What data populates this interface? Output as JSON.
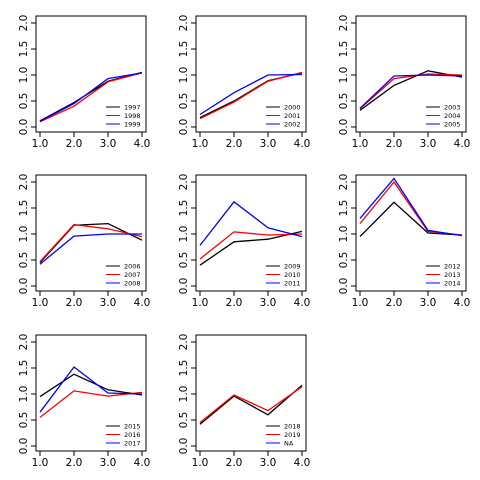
{
  "chart_data": [
    {
      "type": "line",
      "x": [
        1,
        2,
        3,
        4
      ],
      "x_ticks": [
        "1.0",
        "2.0",
        "3.0",
        "4.0"
      ],
      "y_ticks": [
        "0.0",
        "0.5",
        "1.0",
        "1.5",
        "2.0"
      ],
      "xlim": [
        1,
        4
      ],
      "ylim": [
        0,
        2
      ],
      "legend_position": "bottom-right",
      "series": [
        {
          "name": "1997",
          "color": "#000000",
          "values": [
            0.12,
            0.47,
            0.88,
            1.05
          ]
        },
        {
          "name": "1998",
          "color": "#ff0000",
          "values": [
            0.1,
            0.4,
            0.87,
            1.04
          ]
        },
        {
          "name": "1999",
          "color": "#0000ff",
          "values": [
            0.11,
            0.45,
            0.93,
            1.04
          ]
        }
      ]
    },
    {
      "type": "line",
      "x": [
        1,
        2,
        3,
        4
      ],
      "x_ticks": [
        "1.0",
        "2.0",
        "3.0",
        "4.0"
      ],
      "y_ticks": [
        "0.0",
        "0.5",
        "1.0",
        "1.5",
        "2.0"
      ],
      "xlim": [
        1,
        4
      ],
      "ylim": [
        0,
        2
      ],
      "legend_position": "bottom-right",
      "series": [
        {
          "name": "2000",
          "color": "#000000",
          "values": [
            0.18,
            0.5,
            0.89,
            1.04
          ]
        },
        {
          "name": "2001",
          "color": "#ff0000",
          "values": [
            0.16,
            0.48,
            0.88,
            1.05
          ]
        },
        {
          "name": "2002",
          "color": "#0000ff",
          "values": [
            0.24,
            0.66,
            1.0,
            1.01
          ]
        }
      ]
    },
    {
      "type": "line",
      "x": [
        1,
        2,
        3,
        4
      ],
      "x_ticks": [
        "1.0",
        "2.0",
        "3.0",
        "4.0"
      ],
      "y_ticks": [
        "0.0",
        "0.5",
        "1.0",
        "1.5",
        "2.0"
      ],
      "xlim": [
        1,
        4
      ],
      "ylim": [
        0,
        2
      ],
      "legend_position": "bottom-right",
      "series": [
        {
          "name": "2003",
          "color": "#000000",
          "values": [
            0.32,
            0.8,
            1.08,
            0.96
          ]
        },
        {
          "name": "2004",
          "color": "#ff0000",
          "values": [
            0.35,
            0.93,
            1.02,
            1.0
          ]
        },
        {
          "name": "2005",
          "color": "#0000ff",
          "values": [
            0.36,
            0.98,
            1.0,
            0.98
          ]
        }
      ]
    },
    {
      "type": "line",
      "x": [
        1,
        2,
        3,
        4
      ],
      "x_ticks": [
        "1.0",
        "2.0",
        "3.0",
        "4.0"
      ],
      "y_ticks": [
        "0.0",
        "0.5",
        "1.0",
        "1.5",
        "2.0"
      ],
      "xlim": [
        1,
        4
      ],
      "ylim": [
        0,
        2
      ],
      "legend_position": "bottom-right",
      "series": [
        {
          "name": "2006",
          "color": "#000000",
          "values": [
            0.45,
            1.17,
            1.2,
            0.88
          ]
        },
        {
          "name": "2007",
          "color": "#ff0000",
          "values": [
            0.47,
            1.18,
            1.1,
            0.95
          ]
        },
        {
          "name": "2008",
          "color": "#0000ff",
          "values": [
            0.42,
            0.96,
            1.0,
            1.0
          ]
        }
      ]
    },
    {
      "type": "line",
      "x": [
        1,
        2,
        3,
        4
      ],
      "x_ticks": [
        "1.0",
        "2.0",
        "3.0",
        "4.0"
      ],
      "y_ticks": [
        "0.0",
        "0.5",
        "1.0",
        "1.5",
        "2.0"
      ],
      "xlim": [
        1,
        4
      ],
      "ylim": [
        0,
        2
      ],
      "legend_position": "bottom-right",
      "series": [
        {
          "name": "2009",
          "color": "#000000",
          "values": [
            0.4,
            0.85,
            0.9,
            1.05
          ]
        },
        {
          "name": "2010",
          "color": "#ff0000",
          "values": [
            0.52,
            1.04,
            0.98,
            1.0
          ]
        },
        {
          "name": "2011",
          "color": "#0000ff",
          "values": [
            0.78,
            1.62,
            1.12,
            0.95
          ]
        }
      ]
    },
    {
      "type": "line",
      "x": [
        1,
        2,
        3,
        4
      ],
      "x_ticks": [
        "1.0",
        "2.0",
        "3.0",
        "4.0"
      ],
      "y_ticks": [
        "0.0",
        "0.5",
        "1.0",
        "1.5",
        "2.0"
      ],
      "xlim": [
        1,
        4
      ],
      "ylim": [
        0,
        2
      ],
      "legend_position": "bottom-right",
      "series": [
        {
          "name": "2012",
          "color": "#000000",
          "values": [
            0.95,
            1.61,
            1.02,
            0.98
          ]
        },
        {
          "name": "2013",
          "color": "#ff0000",
          "values": [
            1.2,
            2.0,
            1.05,
            0.98
          ]
        },
        {
          "name": "2014",
          "color": "#0000ff",
          "values": [
            1.3,
            2.07,
            1.07,
            0.97
          ]
        }
      ]
    },
    {
      "type": "line",
      "x": [
        1,
        2,
        3,
        4
      ],
      "x_ticks": [
        "1.0",
        "2.0",
        "3.0",
        "4.0"
      ],
      "y_ticks": [
        "0.0",
        "0.5",
        "1.0",
        "1.5",
        "2.0"
      ],
      "xlim": [
        1,
        4
      ],
      "ylim": [
        0,
        2
      ],
      "legend_position": "bottom-right",
      "series": [
        {
          "name": "2015",
          "color": "#000000",
          "values": [
            0.95,
            1.38,
            1.08,
            0.98
          ]
        },
        {
          "name": "2016",
          "color": "#ff0000",
          "values": [
            0.55,
            1.06,
            0.96,
            1.03
          ]
        },
        {
          "name": "2017",
          "color": "#0000ff",
          "values": [
            0.65,
            1.52,
            1.02,
            1.0
          ]
        }
      ]
    },
    {
      "type": "line",
      "x": [
        1,
        2,
        3,
        4
      ],
      "x_ticks": [
        "1.0",
        "2.0",
        "3.0",
        "4.0"
      ],
      "y_ticks": [
        "0.0",
        "0.5",
        "1.0",
        "1.5",
        "2.0"
      ],
      "xlim": [
        1,
        4
      ],
      "ylim": [
        0,
        2
      ],
      "legend_position": "bottom-right",
      "series": [
        {
          "name": "2018",
          "color": "#000000",
          "values": [
            0.42,
            0.96,
            0.6,
            1.17
          ]
        },
        {
          "name": "2019",
          "color": "#ff0000",
          "values": [
            0.45,
            0.98,
            0.68,
            1.14
          ]
        },
        {
          "name": "NA",
          "color": "#0000ff",
          "values": [
            null,
            null,
            null,
            null
          ]
        }
      ]
    }
  ]
}
